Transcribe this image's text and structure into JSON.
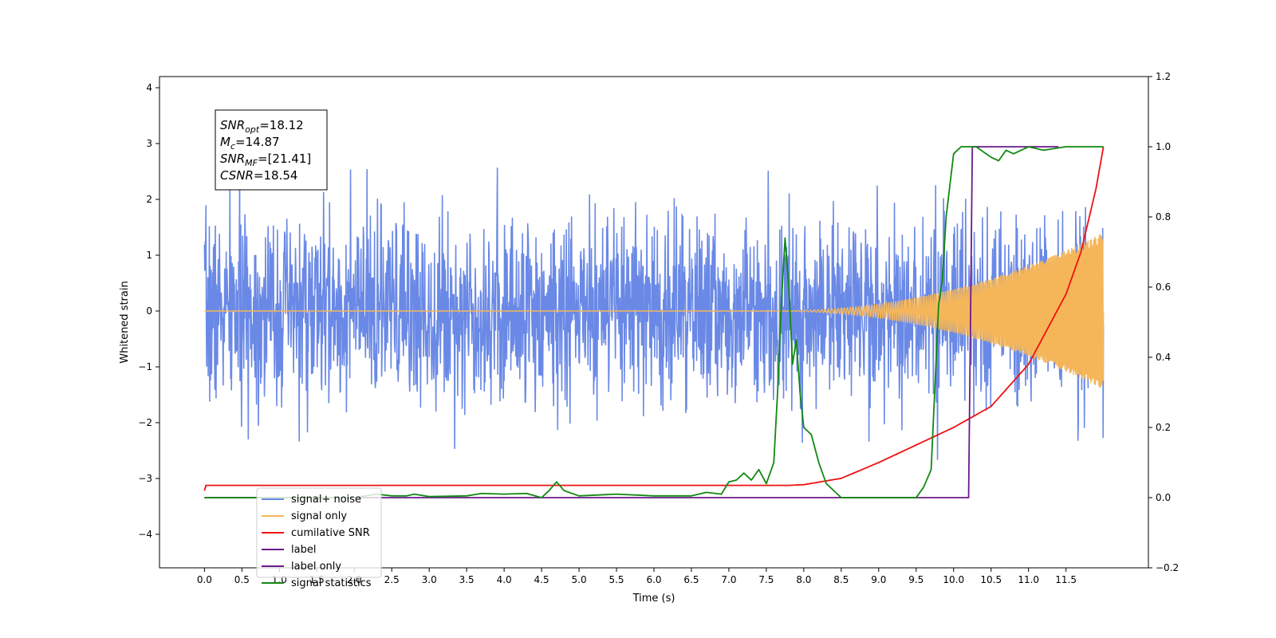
{
  "chart_data": {
    "type": "line",
    "xlabel": "Time (s)",
    "ylabel": "Whitened strain",
    "xlim": [
      -0.6,
      12.6
    ],
    "ylim": [
      -4.6,
      4.2
    ],
    "ylim_right": [
      -0.2,
      1.2
    ],
    "x_ticks": [
      0.0,
      0.5,
      1.0,
      1.5,
      2.0,
      2.5,
      3.0,
      3.5,
      4.0,
      4.5,
      5.0,
      5.5,
      6.0,
      6.5,
      7.0,
      7.5,
      8.0,
      8.5,
      9.0,
      9.5,
      10.0,
      10.5,
      11.0,
      11.5
    ],
    "x_tick_labels": [
      "0.0",
      "0.5",
      "1.0",
      "1.5",
      "2.0",
      "2.5",
      "3.0",
      "3.5",
      "4.0",
      "4.5",
      "5.0",
      "5.5",
      "6.0",
      "6.5",
      "7.0",
      "7.5",
      "8.0",
      "8.5",
      "9.0",
      "9.5",
      "10.0",
      "10.5",
      "11.0",
      "11.5"
    ],
    "y_ticks": [
      -4,
      -3,
      -2,
      -1,
      0,
      1,
      2,
      3,
      4
    ],
    "y_tick_labels": [
      "−4",
      "−3",
      "−2",
      "−1",
      "0",
      "1",
      "2",
      "3",
      "4"
    ],
    "y_right_ticks": [
      -0.2,
      0.0,
      0.2,
      0.4,
      0.6,
      0.8,
      1.0,
      1.2
    ],
    "y_right_tick_labels": [
      "−0.2",
      "0.0",
      "0.2",
      "0.4",
      "0.6",
      "0.8",
      "1.0",
      "1.2"
    ],
    "grid": false,
    "legend_position": "lower-left",
    "annotations": [
      {
        "base": "SNR",
        "sub": "opt",
        "rest": "=18.12"
      },
      {
        "base": "M",
        "sub": "c",
        "rest": "=14.87"
      },
      {
        "base": "SNR",
        "sub": "MF",
        "rest": "=[21.41]"
      },
      {
        "base": "CSNR",
        "sub": "",
        "rest": "=18.54"
      }
    ],
    "series": [
      {
        "name": "signal+ noise",
        "axis": "left",
        "color": "#6a89e6",
        "noise_sigma": 0.82,
        "x_range": [
          0.0,
          12.0
        ],
        "samples": 2400,
        "seed": 7
      },
      {
        "name": "signal only",
        "axis": "left",
        "color": "#f5b65a",
        "chirp_start_time": 7.5,
        "chirp_end_time": 12.0,
        "end_amplitude": 1.4,
        "x_range": [
          0.0,
          12.0
        ]
      },
      {
        "name": "cumilative SNR",
        "axis": "right",
        "color": "#ee1111",
        "x": [
          0.0,
          0.02,
          7.0,
          7.8,
          8.0,
          8.5,
          9.0,
          9.5,
          10.0,
          10.5,
          11.0,
          11.5,
          11.7,
          11.9,
          12.0
        ],
        "y": [
          0.02,
          0.035,
          0.035,
          0.035,
          0.037,
          0.055,
          0.1,
          0.15,
          0.2,
          0.26,
          0.38,
          0.58,
          0.7,
          0.88,
          1.0
        ]
      },
      {
        "name": "label",
        "axis": "right",
        "color": "#6a1b8a",
        "x": [
          0.0,
          10.2,
          10.25,
          11.4
        ],
        "y": [
          0.0,
          0.0,
          1.0,
          1.0
        ]
      },
      {
        "name": "label only",
        "axis": "right",
        "color": "#6a1b8a",
        "x": [],
        "y": []
      },
      {
        "name": "signal statistics",
        "axis": "right",
        "color": "#118811",
        "x": [
          0.0,
          1.0,
          2.0,
          2.3,
          2.5,
          2.7,
          2.8,
          3.0,
          3.5,
          3.7,
          4.0,
          4.3,
          4.5,
          4.6,
          4.7,
          4.8,
          5.0,
          5.5,
          6.0,
          6.5,
          6.7,
          6.9,
          7.0,
          7.1,
          7.2,
          7.3,
          7.4,
          7.5,
          7.6,
          7.65,
          7.7,
          7.75,
          7.8,
          7.85,
          7.9,
          7.95,
          8.0,
          8.1,
          8.2,
          8.3,
          8.5,
          9.0,
          9.5,
          9.6,
          9.7,
          9.8,
          9.85,
          9.9,
          10.0,
          10.1,
          10.2,
          10.3,
          10.5,
          10.6,
          10.7,
          10.8,
          10.9,
          11.0,
          11.2,
          11.5,
          12.0
        ],
        "y": [
          0.0,
          0.0,
          0.0,
          0.01,
          0.005,
          0.005,
          0.01,
          0.003,
          0.005,
          0.012,
          0.01,
          0.012,
          0.0,
          0.02,
          0.045,
          0.02,
          0.005,
          0.01,
          0.005,
          0.005,
          0.015,
          0.01,
          0.045,
          0.05,
          0.07,
          0.05,
          0.08,
          0.04,
          0.1,
          0.3,
          0.55,
          0.74,
          0.6,
          0.38,
          0.45,
          0.3,
          0.2,
          0.18,
          0.1,
          0.04,
          0.0,
          0.0,
          0.0,
          0.03,
          0.08,
          0.55,
          0.62,
          0.8,
          0.98,
          1.0,
          1.0,
          1.0,
          0.97,
          0.96,
          0.99,
          0.98,
          0.99,
          1.0,
          0.99,
          1.0,
          1.0
        ]
      }
    ]
  }
}
